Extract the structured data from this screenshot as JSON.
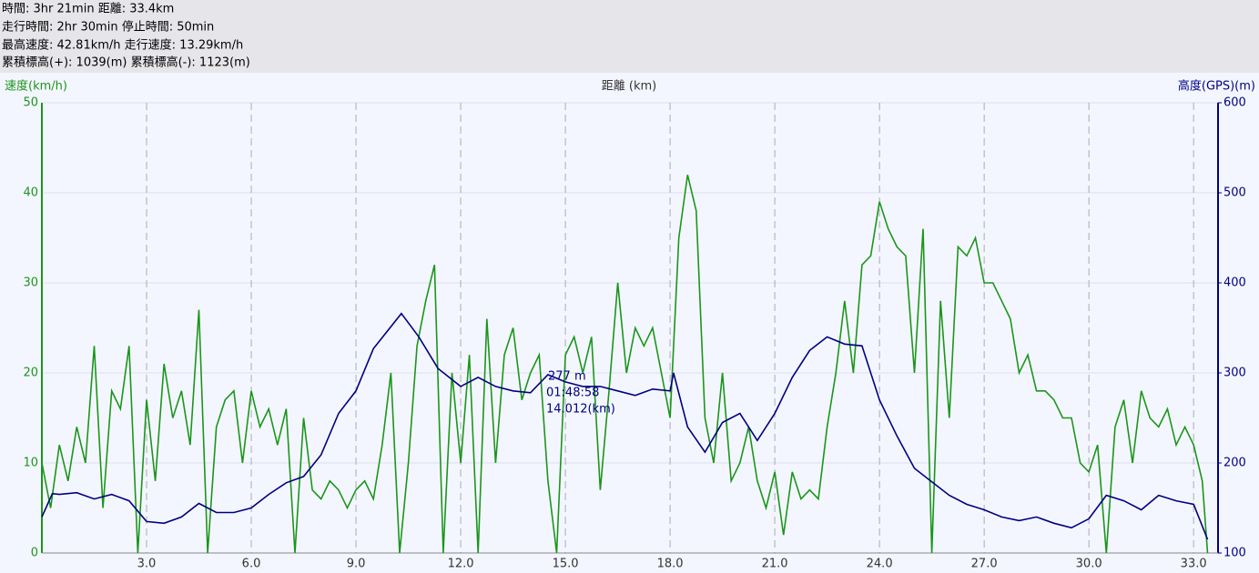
{
  "header": {
    "lines": [
      "時間: 3hr 21min 距離: 33.4km",
      "走行時間: 2hr 30min 停止時間: 50min",
      "最高速度: 42.81km/h 走行速度: 13.29km/h",
      "累積標高(+): 1039(m) 累積標高(-): 1123(m)"
    ]
  },
  "chart_data": {
    "type": "line",
    "y_label": "速度(km/h)",
    "x_label": "距離 (km)",
    "y2_label": "高度(GPS)(m)",
    "annotation": [
      "277 m",
      "01:48:58",
      "14.012(km)"
    ],
    "xlim": [
      0,
      33.7
    ],
    "xticks": [
      {
        "value": 3,
        "label": "3.0"
      },
      {
        "value": 6,
        "label": "6.0"
      },
      {
        "value": 9,
        "label": "9.0"
      },
      {
        "value": 12,
        "label": "12.0"
      },
      {
        "value": 15,
        "label": "15.0"
      },
      {
        "value": 18,
        "label": "18.0"
      },
      {
        "value": 21,
        "label": "21.0"
      },
      {
        "value": 24,
        "label": "24.0"
      },
      {
        "value": 27,
        "label": "27.0"
      },
      {
        "value": 30,
        "label": "30.0"
      },
      {
        "value": 33,
        "label": "33.0"
      }
    ],
    "ylim": [
      0,
      50
    ],
    "yticks": [
      0,
      10,
      20,
      30,
      40,
      50
    ],
    "y2lim": [
      100,
      600
    ],
    "y2ticks": [
      100,
      200,
      300,
      400,
      500,
      600
    ],
    "grid": true,
    "series": [
      {
        "name": "速度",
        "color": "#1a961a",
        "axis": "y",
        "x": [
          0,
          0.25,
          0.5,
          0.75,
          1,
          1.25,
          1.5,
          1.75,
          2,
          2.25,
          2.5,
          2.75,
          3,
          3.25,
          3.5,
          3.75,
          4,
          4.25,
          4.5,
          4.75,
          5,
          5.25,
          5.5,
          5.75,
          6,
          6.25,
          6.5,
          6.75,
          7,
          7.25,
          7.5,
          7.75,
          8,
          8.25,
          8.5,
          8.75,
          9,
          9.25,
          9.5,
          9.75,
          10,
          10.25,
          10.5,
          10.75,
          11,
          11.25,
          11.5,
          11.75,
          12,
          12.25,
          12.5,
          12.75,
          13,
          13.25,
          13.5,
          13.75,
          14,
          14.25,
          14.5,
          14.75,
          15,
          15.25,
          15.5,
          15.75,
          16,
          16.25,
          16.5,
          16.75,
          17,
          17.25,
          17.5,
          17.75,
          18,
          18.25,
          18.5,
          18.75,
          19,
          19.25,
          19.5,
          19.75,
          20,
          20.25,
          20.5,
          20.75,
          21,
          21.25,
          21.5,
          21.75,
          22,
          22.25,
          22.5,
          22.75,
          23,
          23.25,
          23.5,
          23.75,
          24,
          24.25,
          24.5,
          24.75,
          25,
          25.25,
          25.5,
          25.75,
          26,
          26.25,
          26.5,
          26.75,
          27,
          27.25,
          27.5,
          27.75,
          28,
          28.25,
          28.5,
          28.75,
          29,
          29.25,
          29.5,
          29.75,
          30,
          30.25,
          30.5,
          30.75,
          31,
          31.25,
          31.5,
          31.75,
          32,
          32.25,
          32.5,
          32.75,
          33,
          33.25,
          33.4
        ],
        "values": [
          10,
          5,
          12,
          8,
          14,
          10,
          23,
          5,
          18,
          16,
          23,
          0,
          17,
          8,
          21,
          15,
          18,
          12,
          27,
          0,
          14,
          17,
          18,
          10,
          18,
          14,
          16,
          12,
          16,
          0,
          15,
          7,
          6,
          8,
          7,
          5,
          7,
          8,
          6,
          12,
          20,
          0,
          10,
          23,
          28,
          32,
          0,
          20,
          10,
          22,
          0,
          26,
          10,
          22,
          25,
          17,
          20,
          22,
          8,
          0,
          22,
          24,
          20,
          24,
          7,
          18,
          30,
          20,
          25,
          23,
          25,
          20,
          15,
          35,
          42,
          38,
          15,
          10,
          20,
          8,
          10,
          14,
          8,
          5,
          9,
          2,
          9,
          6,
          7,
          6,
          14,
          20,
          28,
          20,
          32,
          33,
          39,
          36,
          34,
          33,
          20,
          36,
          0,
          28,
          15,
          34,
          33,
          35,
          30,
          30,
          28,
          26,
          20,
          22,
          18,
          18,
          17,
          15,
          15,
          10,
          9,
          12,
          0,
          14,
          17,
          10,
          18,
          15,
          14,
          16,
          12,
          14,
          12,
          8,
          0
        ]
      },
      {
        "name": "高度",
        "color": "#000080",
        "axis": "y2",
        "x": [
          0,
          0.3,
          0.5,
          1,
          1.5,
          2,
          2.5,
          3,
          3.5,
          4,
          4.5,
          5,
          5.5,
          6,
          6.5,
          7,
          7.5,
          8,
          8.5,
          9,
          9.5,
          10.3,
          10.8,
          11.35,
          12,
          12.5,
          13,
          13.5,
          14,
          14.5,
          15,
          15.5,
          16,
          16.5,
          17,
          17.5,
          18,
          18.1,
          18.5,
          19,
          19.5,
          20,
          20.5,
          21,
          21.5,
          22,
          22.5,
          23,
          23.5,
          24,
          24.5,
          25,
          25.5,
          26,
          26.5,
          27,
          27.5,
          28,
          28.5,
          29,
          29.5,
          30,
          30.5,
          31,
          31.5,
          32,
          32.5,
          33,
          33.4
        ],
        "values": [
          140,
          166,
          165,
          167,
          160,
          165,
          158,
          135,
          133,
          140,
          155,
          145,
          145,
          150,
          165,
          178,
          185,
          209,
          255,
          280,
          327,
          366,
          340,
          305,
          285,
          295,
          285,
          280,
          278,
          298,
          290,
          285,
          285,
          280,
          275,
          282,
          280,
          300,
          240,
          212,
          245,
          255,
          225,
          255,
          295,
          325,
          340,
          332,
          330,
          270,
          230,
          194,
          179,
          164,
          154,
          148,
          140,
          136,
          140,
          133,
          128,
          138,
          164,
          158,
          148,
          164,
          158,
          154,
          115
        ]
      }
    ]
  }
}
